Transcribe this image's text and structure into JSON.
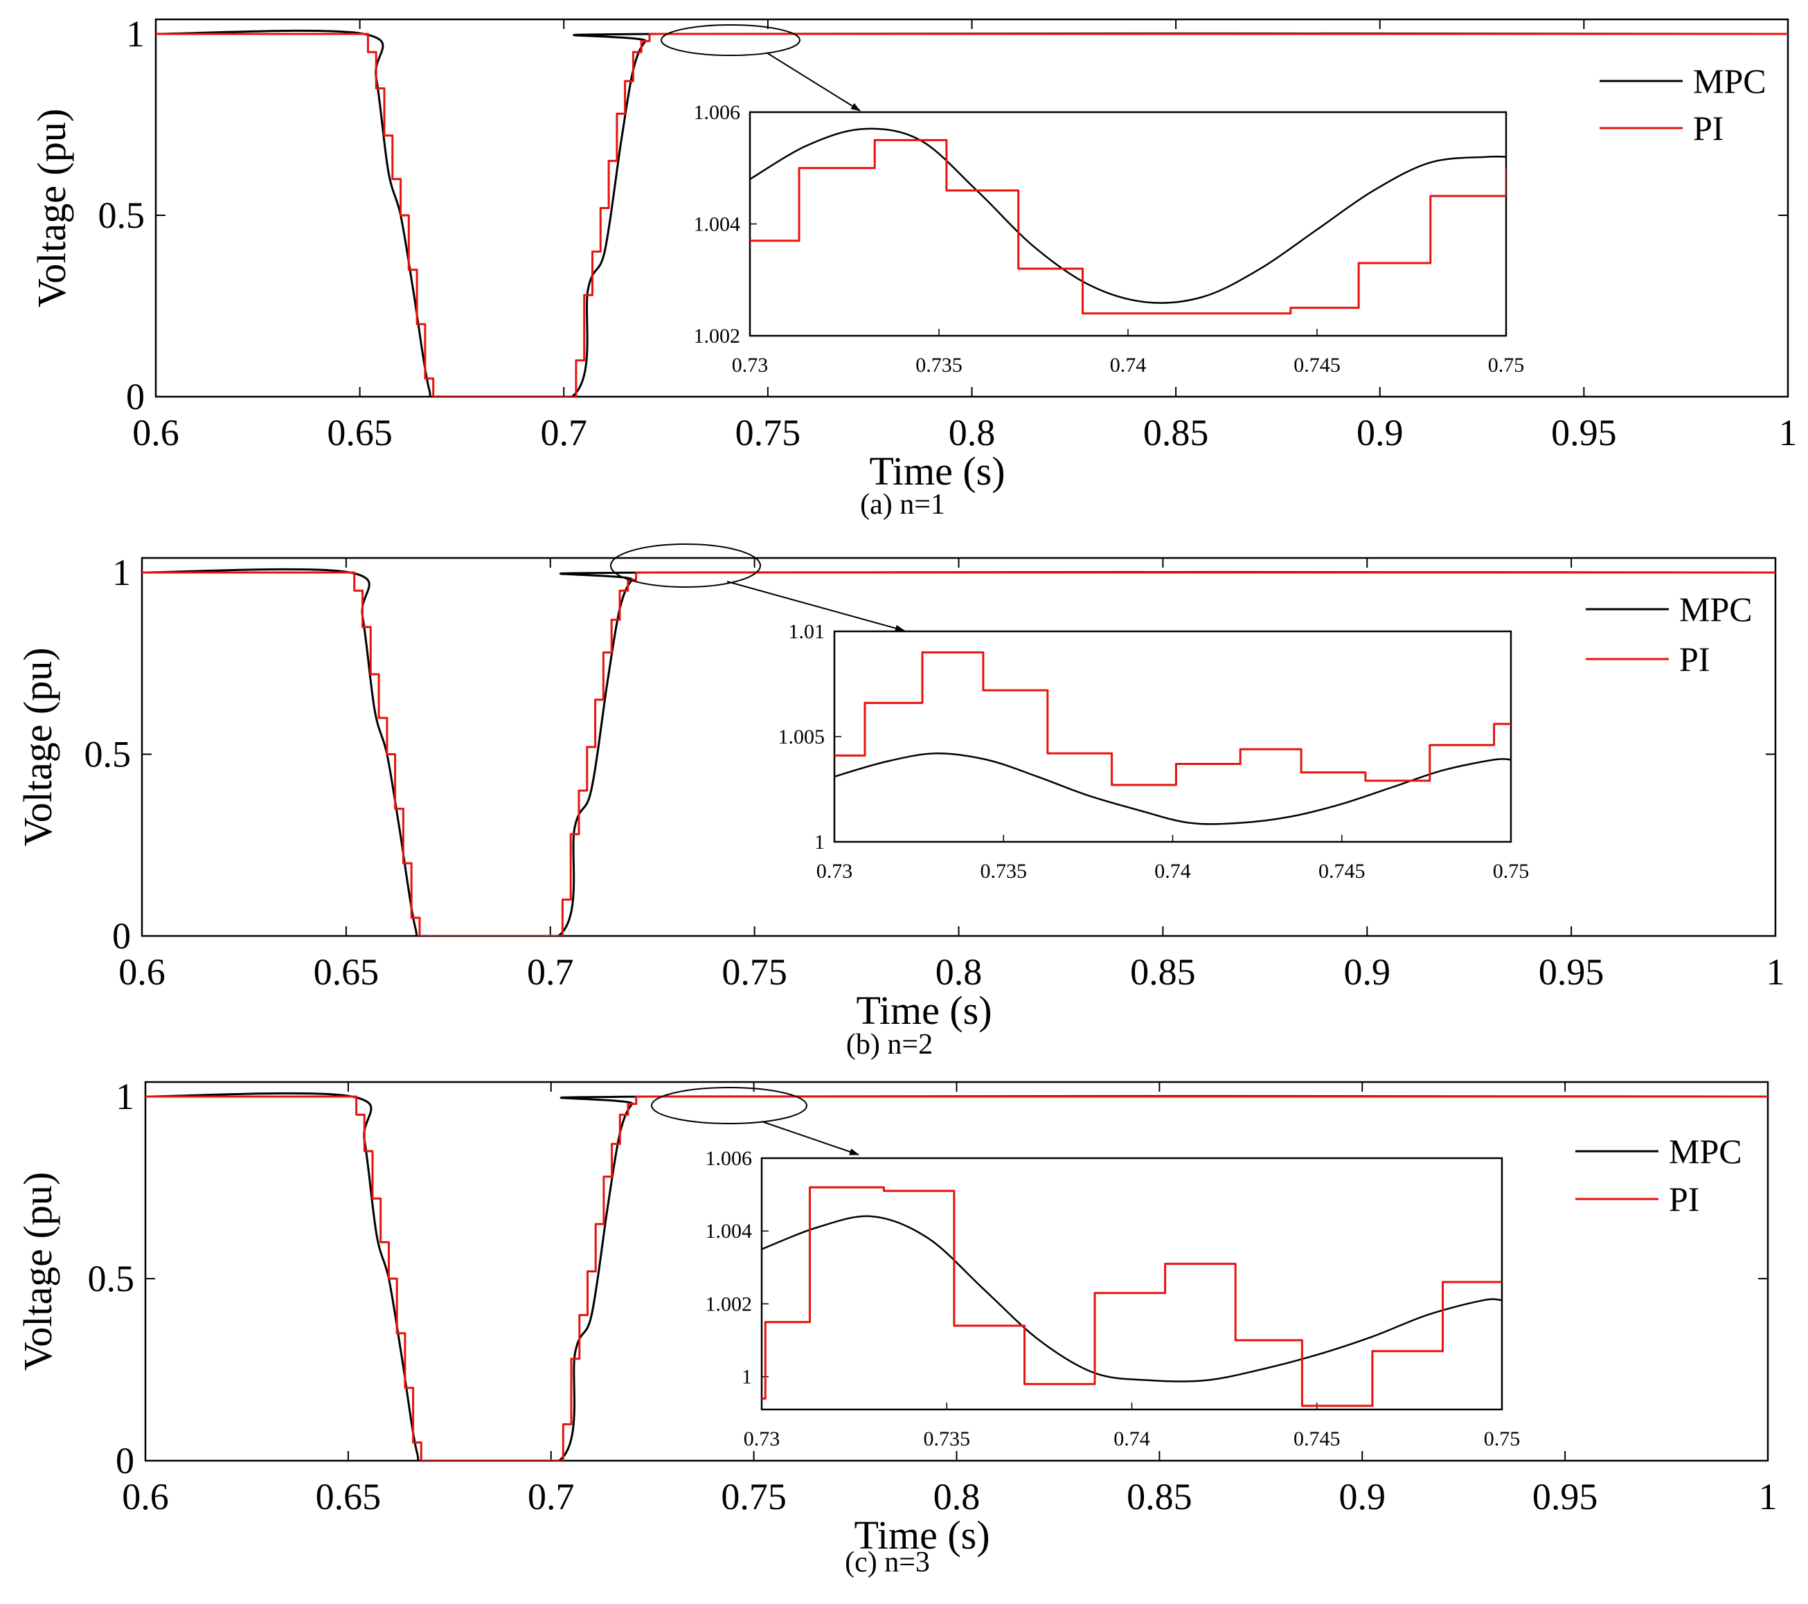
{
  "figure": {
    "series_colors": {
      "MPC": "#000000",
      "PI": "#e8120c"
    },
    "zoom_marker": "ellipse-with-arrow"
  },
  "chart_data": [
    {
      "type": "line",
      "caption": "(a) n=1",
      "xlabel": "Time (s)",
      "ylabel": "Voltage (pu)",
      "xlim": [
        0.6,
        1
      ],
      "ylim": [
        0,
        1.04
      ],
      "xticks": [
        0.6,
        0.65,
        0.7,
        0.75,
        0.8,
        0.85,
        0.9,
        0.95,
        1
      ],
      "xtick_labels": [
        "0.6",
        "0.65",
        "0.7",
        "0.75",
        "0.8",
        "0.85",
        "0.9",
        "0.95",
        "1"
      ],
      "yticks": [
        0,
        0.5,
        1
      ],
      "ytick_labels": [
        "0",
        "0.5",
        "1"
      ],
      "legend": [
        "MPC",
        "PI"
      ],
      "legend_position": "right",
      "series": [
        {
          "name": "MPC",
          "style": "smooth",
          "x": [
            0.6,
            0.651,
            0.654,
            0.657,
            0.66,
            0.663,
            0.667,
            0.67,
            0.702,
            0.706,
            0.71,
            0.714,
            0.717,
            0.72,
            0.724,
            1
          ],
          "y": [
            1,
            1,
            0.88,
            0.62,
            0.5,
            0.3,
            0.02,
            0,
            0,
            0.3,
            0.4,
            0.7,
            0.9,
            0.98,
            1,
            1
          ]
        },
        {
          "name": "PI",
          "style": "step",
          "x": [
            0.6,
            0.652,
            0.654,
            0.656,
            0.658,
            0.66,
            0.662,
            0.664,
            0.666,
            0.668,
            0.703,
            0.705,
            0.707,
            0.709,
            0.711,
            0.713,
            0.715,
            0.717,
            0.719,
            0.721,
            0.723,
            1
          ],
          "y": [
            1,
            0.95,
            0.85,
            0.72,
            0.6,
            0.5,
            0.35,
            0.2,
            0.05,
            0,
            0.1,
            0.28,
            0.4,
            0.52,
            0.65,
            0.78,
            0.87,
            0.95,
            0.98,
            1,
            1,
            1
          ]
        }
      ],
      "inset": {
        "xlim": [
          0.73,
          0.75
        ],
        "ylim": [
          1.002,
          1.006
        ],
        "xticks": [
          0.73,
          0.735,
          0.74,
          0.745,
          0.75
        ],
        "xtick_labels": [
          "0.73",
          "0.735",
          "0.74",
          "0.745",
          "0.75"
        ],
        "yticks": [
          1.002,
          1.004,
          1.006
        ],
        "ytick_labels": [
          "1.002",
          "1.004",
          "1.006"
        ],
        "series": [
          {
            "name": "MPC",
            "style": "smooth",
            "x": [
              0.73,
              0.7315,
              0.733,
              0.7345,
              0.736,
              0.7375,
              0.739,
              0.7405,
              0.742,
              0.7435,
              0.745,
              0.7465,
              0.748,
              0.7495,
              0.75
            ],
            "y": [
              1.0048,
              1.0054,
              1.0057,
              1.0055,
              1.0046,
              1.0036,
              1.0029,
              1.0026,
              1.0027,
              1.0032,
              1.0039,
              1.0046,
              1.0051,
              1.0052,
              1.0052
            ]
          },
          {
            "name": "PI",
            "style": "step",
            "x": [
              0.73,
              0.7313,
              0.7333,
              0.7352,
              0.7371,
              0.7388,
              0.7406,
              0.7425,
              0.7443,
              0.7461,
              0.748,
              0.75
            ],
            "y": [
              1.0037,
              1.005,
              1.0055,
              1.0046,
              1.0032,
              1.0024,
              1.0024,
              1.0024,
              1.0025,
              1.0033,
              1.0045,
              1.005
            ]
          }
        ]
      }
    },
    {
      "type": "line",
      "caption": "(b) n=2",
      "xlabel": "Time (s)",
      "ylabel": "Voltage (pu)",
      "xlim": [
        0.6,
        1
      ],
      "ylim": [
        0,
        1.04
      ],
      "xticks": [
        0.6,
        0.65,
        0.7,
        0.75,
        0.8,
        0.85,
        0.9,
        0.95,
        1
      ],
      "xtick_labels": [
        "0.6",
        "0.65",
        "0.7",
        "0.75",
        "0.8",
        "0.85",
        "0.9",
        "0.95",
        "1"
      ],
      "yticks": [
        0,
        0.5,
        1
      ],
      "ytick_labels": [
        "0",
        "0.5",
        "1"
      ],
      "legend": [
        "MPC",
        "PI"
      ],
      "legend_position": "right",
      "series": [
        {
          "name": "MPC",
          "style": "smooth",
          "x": [
            0.6,
            0.651,
            0.654,
            0.657,
            0.66,
            0.663,
            0.667,
            0.67,
            0.702,
            0.706,
            0.71,
            0.714,
            0.717,
            0.72,
            0.724,
            1
          ],
          "y": [
            1,
            1,
            0.88,
            0.62,
            0.5,
            0.3,
            0.02,
            0,
            0,
            0.3,
            0.4,
            0.7,
            0.9,
            0.98,
            1,
            1
          ]
        },
        {
          "name": "PI",
          "style": "step",
          "x": [
            0.6,
            0.652,
            0.654,
            0.656,
            0.658,
            0.66,
            0.662,
            0.664,
            0.666,
            0.668,
            0.703,
            0.705,
            0.707,
            0.709,
            0.711,
            0.713,
            0.715,
            0.717,
            0.719,
            0.721,
            0.723,
            1
          ],
          "y": [
            1,
            0.95,
            0.85,
            0.72,
            0.6,
            0.5,
            0.35,
            0.2,
            0.05,
            0,
            0.1,
            0.28,
            0.4,
            0.52,
            0.65,
            0.78,
            0.87,
            0.95,
            0.98,
            1,
            1,
            1
          ]
        }
      ],
      "inset": {
        "xlim": [
          0.73,
          0.75
        ],
        "ylim": [
          1,
          1.01
        ],
        "xticks": [
          0.73,
          0.735,
          0.74,
          0.745,
          0.75
        ],
        "xtick_labels": [
          "0.73",
          "0.735",
          "0.74",
          "0.745",
          "0.75"
        ],
        "yticks": [
          1,
          1.005,
          1.01
        ],
        "ytick_labels": [
          "1",
          "1.005",
          "1.01"
        ],
        "series": [
          {
            "name": "MPC",
            "style": "smooth",
            "x": [
              0.73,
              0.7315,
              0.733,
              0.7345,
              0.736,
              0.7375,
              0.739,
              0.7405,
              0.742,
              0.7435,
              0.745,
              0.7465,
              0.748,
              0.7495,
              0.75
            ],
            "y": [
              1.0031,
              1.0038,
              1.0042,
              1.0039,
              1.0031,
              1.0022,
              1.0015,
              1.0009,
              1.0009,
              1.0012,
              1.0018,
              1.0026,
              1.0034,
              1.0039,
              1.0039
            ]
          },
          {
            "name": "PI",
            "style": "step",
            "x": [
              0.73,
              0.7309,
              0.7326,
              0.7344,
              0.7363,
              0.7382,
              0.7401,
              0.742,
              0.7438,
              0.7457,
              0.7476,
              0.7495,
              0.75
            ],
            "y": [
              1.0041,
              1.0066,
              1.009,
              1.0072,
              1.0042,
              1.0027,
              1.0037,
              1.0044,
              1.0033,
              1.0029,
              1.0046,
              1.0056,
              1.0056
            ]
          }
        ]
      }
    },
    {
      "type": "line",
      "caption": "(c) n=3",
      "xlabel": "Time (s)",
      "ylabel": "Voltage (pu)",
      "xlim": [
        0.6,
        1
      ],
      "ylim": [
        0,
        1.04
      ],
      "xticks": [
        0.6,
        0.65,
        0.7,
        0.75,
        0.8,
        0.85,
        0.9,
        0.95,
        1
      ],
      "xtick_labels": [
        "0.6",
        "0.65",
        "0.7",
        "0.75",
        "0.8",
        "0.85",
        "0.9",
        "0.95",
        "1"
      ],
      "yticks": [
        0,
        0.5,
        1
      ],
      "ytick_labels": [
        "0",
        "0.5",
        "1"
      ],
      "legend": [
        "MPC",
        "PI"
      ],
      "legend_position": "right",
      "series": [
        {
          "name": "MPC",
          "style": "smooth",
          "x": [
            0.6,
            0.651,
            0.654,
            0.657,
            0.66,
            0.663,
            0.667,
            0.67,
            0.702,
            0.706,
            0.71,
            0.714,
            0.717,
            0.72,
            0.724,
            1
          ],
          "y": [
            1,
            1,
            0.88,
            0.62,
            0.5,
            0.3,
            0.02,
            0,
            0,
            0.3,
            0.4,
            0.7,
            0.9,
            0.98,
            1,
            1
          ]
        },
        {
          "name": "PI",
          "style": "step",
          "x": [
            0.6,
            0.652,
            0.654,
            0.656,
            0.658,
            0.66,
            0.662,
            0.664,
            0.666,
            0.668,
            0.703,
            0.705,
            0.707,
            0.709,
            0.711,
            0.713,
            0.715,
            0.717,
            0.719,
            0.721,
            0.723,
            1
          ],
          "y": [
            1,
            0.95,
            0.85,
            0.72,
            0.6,
            0.5,
            0.35,
            0.2,
            0.05,
            0,
            0.1,
            0.28,
            0.4,
            0.52,
            0.65,
            0.78,
            0.87,
            0.95,
            0.98,
            1,
            1,
            1
          ]
        }
      ],
      "inset": {
        "xlim": [
          0.73,
          0.75
        ],
        "ylim": [
          0.9991,
          1.006
        ],
        "xticks": [
          0.73,
          0.735,
          0.74,
          0.745,
          0.75
        ],
        "xtick_labels": [
          "0.73",
          "0.735",
          "0.74",
          "0.745",
          "0.75"
        ],
        "yticks": [
          1,
          1.002,
          1.004,
          1.006
        ],
        "ytick_labels": [
          "1",
          "1.002",
          "1.004",
          "1.006"
        ],
        "series": [
          {
            "name": "MPC",
            "style": "smooth",
            "x": [
              0.73,
              0.7315,
              0.733,
              0.7345,
              0.736,
              0.7375,
              0.739,
              0.7405,
              0.742,
              0.7435,
              0.745,
              0.7465,
              0.748,
              0.7495,
              0.75
            ],
            "y": [
              1.0035,
              1.0041,
              1.0044,
              1.0038,
              1.0024,
              1.001,
              1.0001,
              0.9999,
              0.9999,
              1.0002,
              1.0006,
              1.0011,
              1.0017,
              1.0021,
              1.0021
            ]
          },
          {
            "name": "PI",
            "style": "step",
            "x": [
              0.73,
              0.7301,
              0.7313,
              0.7333,
              0.7352,
              0.7371,
              0.739,
              0.7409,
              0.7428,
              0.7446,
              0.7465,
              0.7484,
              0.75
            ],
            "y": [
              0.9994,
              1.0015,
              1.0052,
              1.0051,
              1.0014,
              0.9998,
              1.0023,
              1.0031,
              1.001,
              0.9992,
              1.0007,
              1.0026,
              1.0026
            ]
          }
        ]
      }
    }
  ]
}
